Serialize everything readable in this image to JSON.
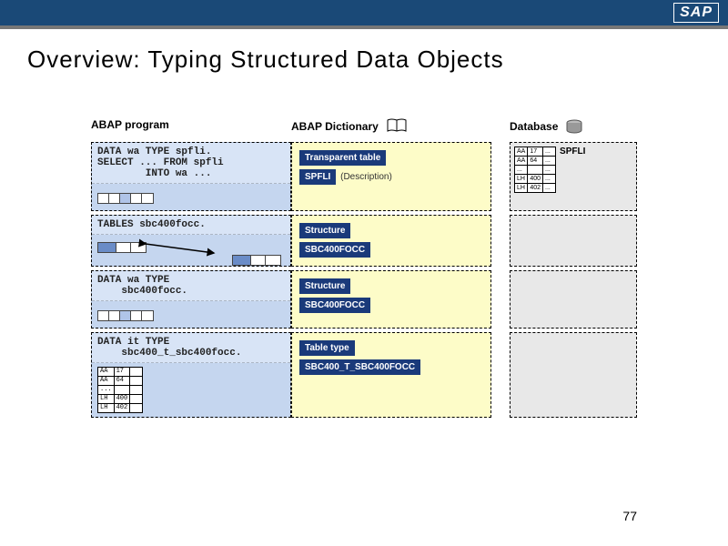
{
  "header": {
    "logo": "SAP"
  },
  "title": "Overview: Typing Structured Data Objects",
  "columns": {
    "abap": "ABAP program",
    "dict": "ABAP Dictionary",
    "db": "Database"
  },
  "rows": [
    {
      "code": [
        "DATA wa TYPE spfli.",
        "SELECT ... FROM spfli",
        "        INTO wa ..."
      ],
      "dict_badges": [
        "Transparent table",
        "SPFLI"
      ],
      "dict_desc": "(Description)",
      "db_label": "SPFLI",
      "db_rows": [
        [
          "AA",
          "17"
        ],
        [
          "AA",
          "64"
        ],
        [
          "...",
          ""
        ],
        [
          "LH",
          "400"
        ],
        [
          "LH",
          "402"
        ]
      ],
      "show_struct": true,
      "show_minitable": false
    },
    {
      "code": [
        "TABLES sbc400focc."
      ],
      "dict_badges": [
        "Structure",
        "SBC400FOCC"
      ],
      "db_label": "",
      "show_struct": false,
      "show_tables_arrow": true,
      "show_minitable": false
    },
    {
      "code": [
        "DATA wa TYPE",
        "    sbc400focc."
      ],
      "dict_badges": [
        "Structure",
        "SBC400FOCC"
      ],
      "db_label": "",
      "show_struct": true,
      "show_minitable": false
    },
    {
      "code": [
        "DATA it TYPE",
        "    sbc400_t_sbc400focc."
      ],
      "dict_badges": [
        "Table type",
        "SBC400_T_SBC400FOCC"
      ],
      "db_label": "",
      "show_struct": false,
      "show_minitable": true,
      "minitable": [
        [
          "AA",
          "17",
          ""
        ],
        [
          "AA",
          "64",
          ""
        ],
        [
          "...",
          "",
          ""
        ],
        [
          "LH",
          "400",
          ""
        ],
        [
          "LH",
          "402",
          ""
        ]
      ]
    }
  ],
  "page_num": "77",
  "colors": {
    "header_bg": "#1a4977",
    "badge_bg": "#1a3a7a",
    "abap_bg": "#c5d6ef",
    "dict_bg": "#fdfcc8",
    "db_bg": "#e8e8e8"
  }
}
